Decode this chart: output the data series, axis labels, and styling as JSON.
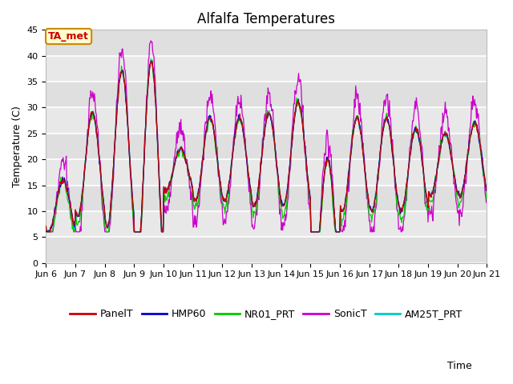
{
  "title": "Alfalfa Temperatures",
  "xlabel": "Time",
  "ylabel": "Temperature (C)",
  "ylim": [
    0,
    45
  ],
  "yticks": [
    0,
    5,
    10,
    15,
    20,
    25,
    30,
    35,
    40,
    45
  ],
  "x_tick_labels": [
    "Jun 6",
    "Jun 7",
    "Jun 8",
    "Jun 9",
    "Jun 10",
    "Jun 11",
    "Jun 12",
    "Jun 13",
    "Jun 14",
    "Jun 15",
    "Jun 16",
    "Jun 17",
    "Jun 18",
    "Jun 19",
    "Jun 20",
    "Jun 21"
  ],
  "series_names": [
    "PanelT",
    "HMP60",
    "NR01_PRT",
    "SonicT",
    "AM25T_PRT"
  ],
  "series_colors": [
    "#cc0000",
    "#0000cc",
    "#00cc00",
    "#cc00cc",
    "#00cccc"
  ],
  "annotation_text": "TA_met",
  "annotation_color": "#cc0000",
  "annotation_bg": "#ffffcc",
  "annotation_border": "#cc8800",
  "plot_bg": "#e8e8e8",
  "band_light": "#f0f0f0",
  "band_dark": "#e0e0e0",
  "title_fontsize": 12,
  "tick_fontsize": 8,
  "label_fontsize": 9,
  "legend_fontsize": 9,
  "n_days": 15,
  "pts_per_day": 48,
  "day_bases": [
    11,
    19,
    22,
    19,
    18,
    20,
    20,
    20,
    21,
    8,
    19,
    19,
    18,
    19,
    20
  ],
  "day_amps": [
    5,
    10,
    15,
    20,
    4,
    8,
    8,
    9,
    10,
    12,
    9,
    9,
    8,
    6,
    7
  ],
  "sonic_extra_amp": 4,
  "figsize": [
    6.4,
    4.8
  ],
  "dpi": 100
}
